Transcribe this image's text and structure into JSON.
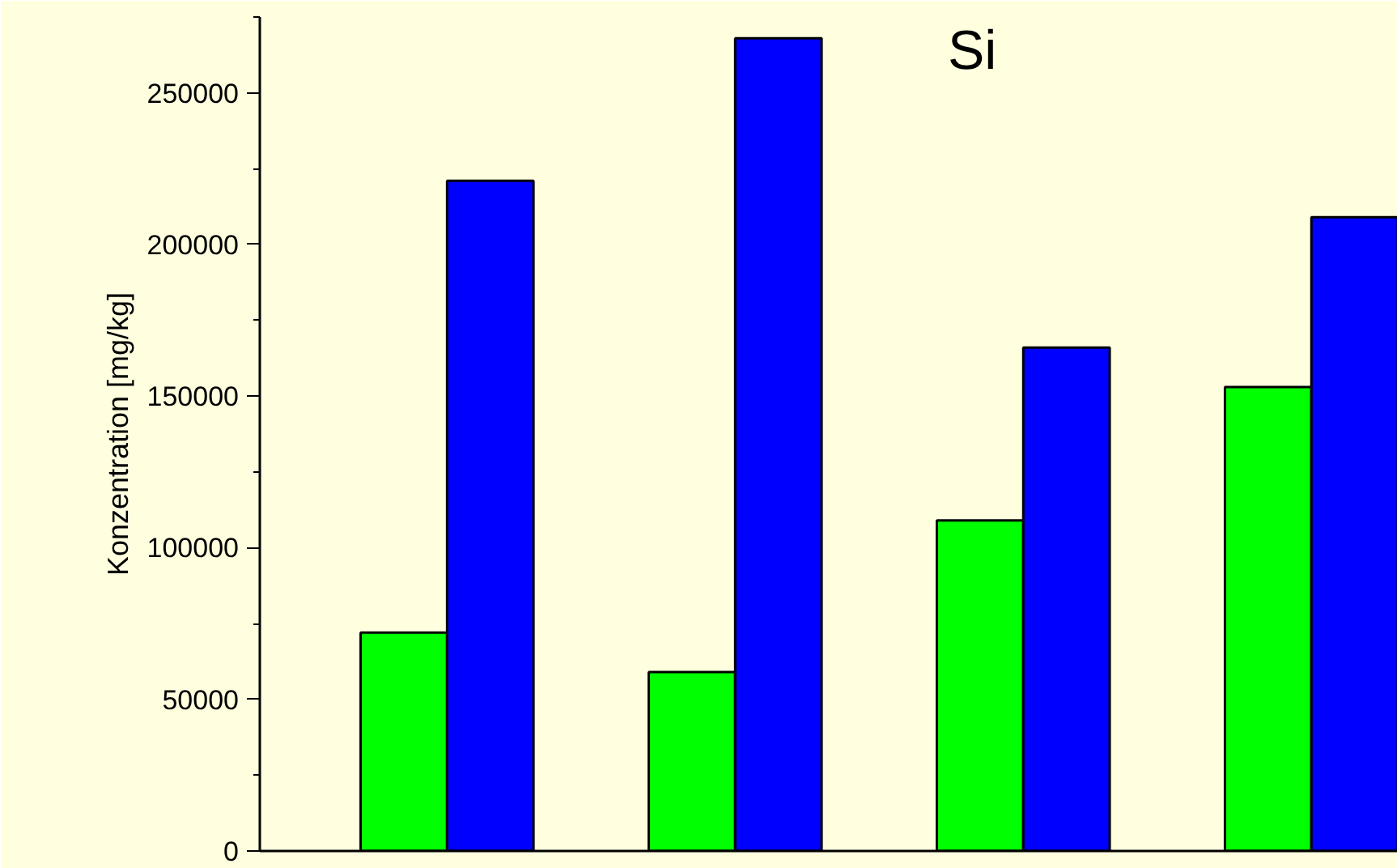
{
  "chart_data": {
    "type": "bar",
    "title": "Si",
    "ylabel": "Konzentration [mg/kg]",
    "categories": [
      null,
      null,
      null,
      null
    ],
    "series": [
      {
        "color": "#00ff00",
        "values": [
          72000,
          59000,
          109000,
          153000
        ]
      },
      {
        "color": "#0000ff",
        "values": [
          221000,
          268000,
          166000,
          209000
        ]
      }
    ],
    "ylim": [
      0,
      275000
    ],
    "yticks": [
      0,
      50000,
      100000,
      150000,
      200000,
      250000
    ],
    "grid": false,
    "tick_labels": "y"
  }
}
